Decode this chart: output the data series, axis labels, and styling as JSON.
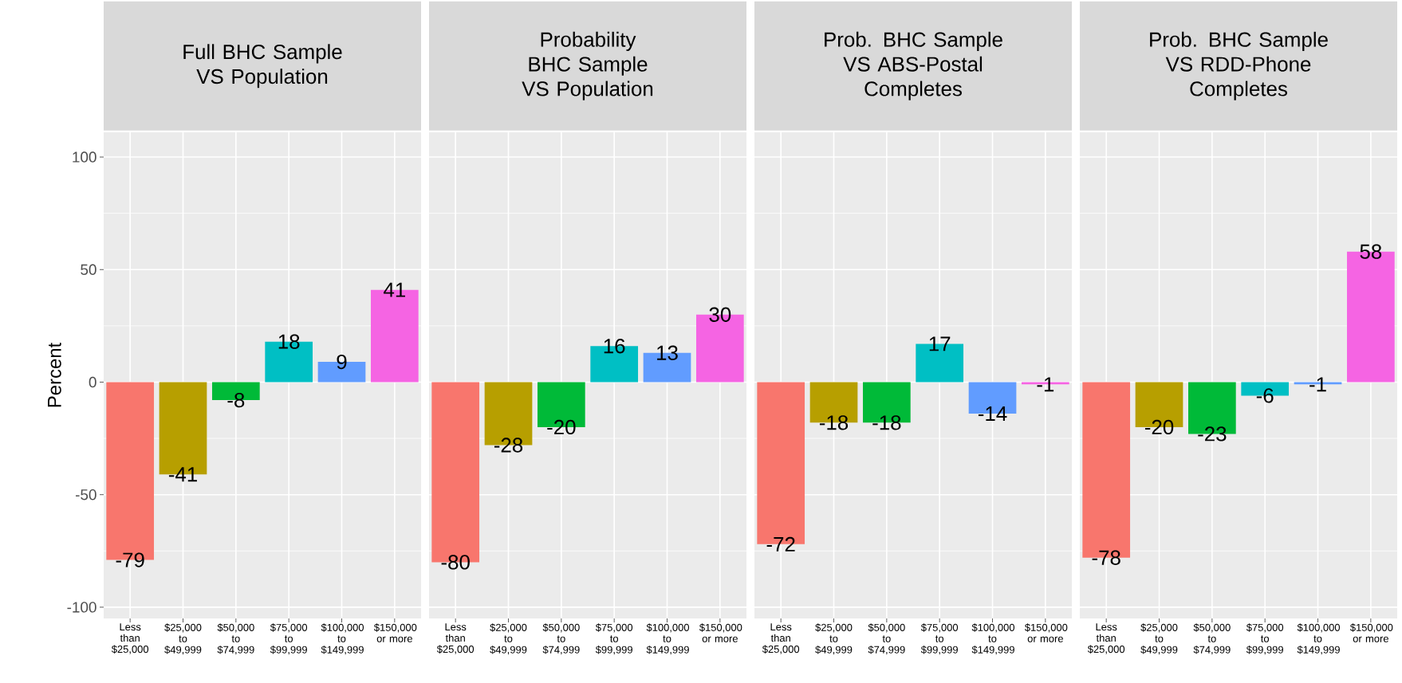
{
  "chart_data": [
    {
      "type": "bar",
      "title": "Full BHC Sample VS Population",
      "ylabel": "Percent",
      "categories": [
        "Less than $25,000",
        "$25,000 to $49,999",
        "$50,000 to $74,999",
        "$75,000 to $99,999",
        "$100,000 to $149,999",
        "$150,000 or more"
      ],
      "values": [
        -79,
        -41,
        -8,
        18,
        9,
        41
      ],
      "colors": [
        "#F8766D",
        "#B79F00",
        "#00BA38",
        "#00BFC4",
        "#619CFF",
        "#F564E3"
      ],
      "ylim": [
        -105,
        111
      ],
      "yticks": [
        -100,
        -50,
        0,
        50,
        100
      ],
      "grid": true,
      "data_labels": true
    },
    {
      "type": "bar",
      "title": "Probability BHC Sample VS Population",
      "categories": [
        "Less than $25,000",
        "$25,000 to $49,999",
        "$50,000 to $74,999",
        "$75,000 to $99,999",
        "$100,000 to $149,999",
        "$150,000 or more"
      ],
      "values": [
        -80,
        -28,
        -20,
        16,
        13,
        30
      ],
      "colors": [
        "#F8766D",
        "#B79F00",
        "#00BA38",
        "#00BFC4",
        "#619CFF",
        "#F564E3"
      ],
      "ylim": [
        -105,
        111
      ],
      "yticks": [
        -100,
        -50,
        0,
        50,
        100
      ],
      "grid": true,
      "data_labels": true,
      "tick_labels": "x"
    },
    {
      "type": "bar",
      "title": "Prob. BHC Sample VS ABS-Postal Completes",
      "categories": [
        "Less than $25,000",
        "$25,000 to $49,999",
        "$50,000 to $74,999",
        "$75,000 to $99,999",
        "$100,000 to $149,999",
        "$150,000 or more"
      ],
      "values": [
        -72,
        -18,
        -18,
        17,
        -14,
        -1
      ],
      "colors": [
        "#F8766D",
        "#B79F00",
        "#00BA38",
        "#00BFC4",
        "#619CFF",
        "#F564E3"
      ],
      "ylim": [
        -105,
        111
      ],
      "yticks": [
        -100,
        -50,
        0,
        50,
        100
      ],
      "grid": true,
      "data_labels": true,
      "tick_labels": "x"
    },
    {
      "type": "bar",
      "title": "Prob. BHC Sample VS RDD-Phone Completes",
      "categories": [
        "Less than $25,000",
        "$25,000 to $49,999",
        "$50,000 to $74,999",
        "$75,000 to $99,999",
        "$100,000 to $149,999",
        "$150,000 or more"
      ],
      "values": [
        -78,
        -20,
        -23,
        -6,
        -1,
        58
      ],
      "colors": [
        "#F8766D",
        "#B79F00",
        "#00BA38",
        "#00BFC4",
        "#619CFF",
        "#F564E3"
      ],
      "ylim": [
        -105,
        111
      ],
      "yticks": [
        -100,
        -50,
        0,
        50,
        100
      ],
      "grid": true,
      "data_labels": true,
      "tick_labels": "x"
    }
  ]
}
